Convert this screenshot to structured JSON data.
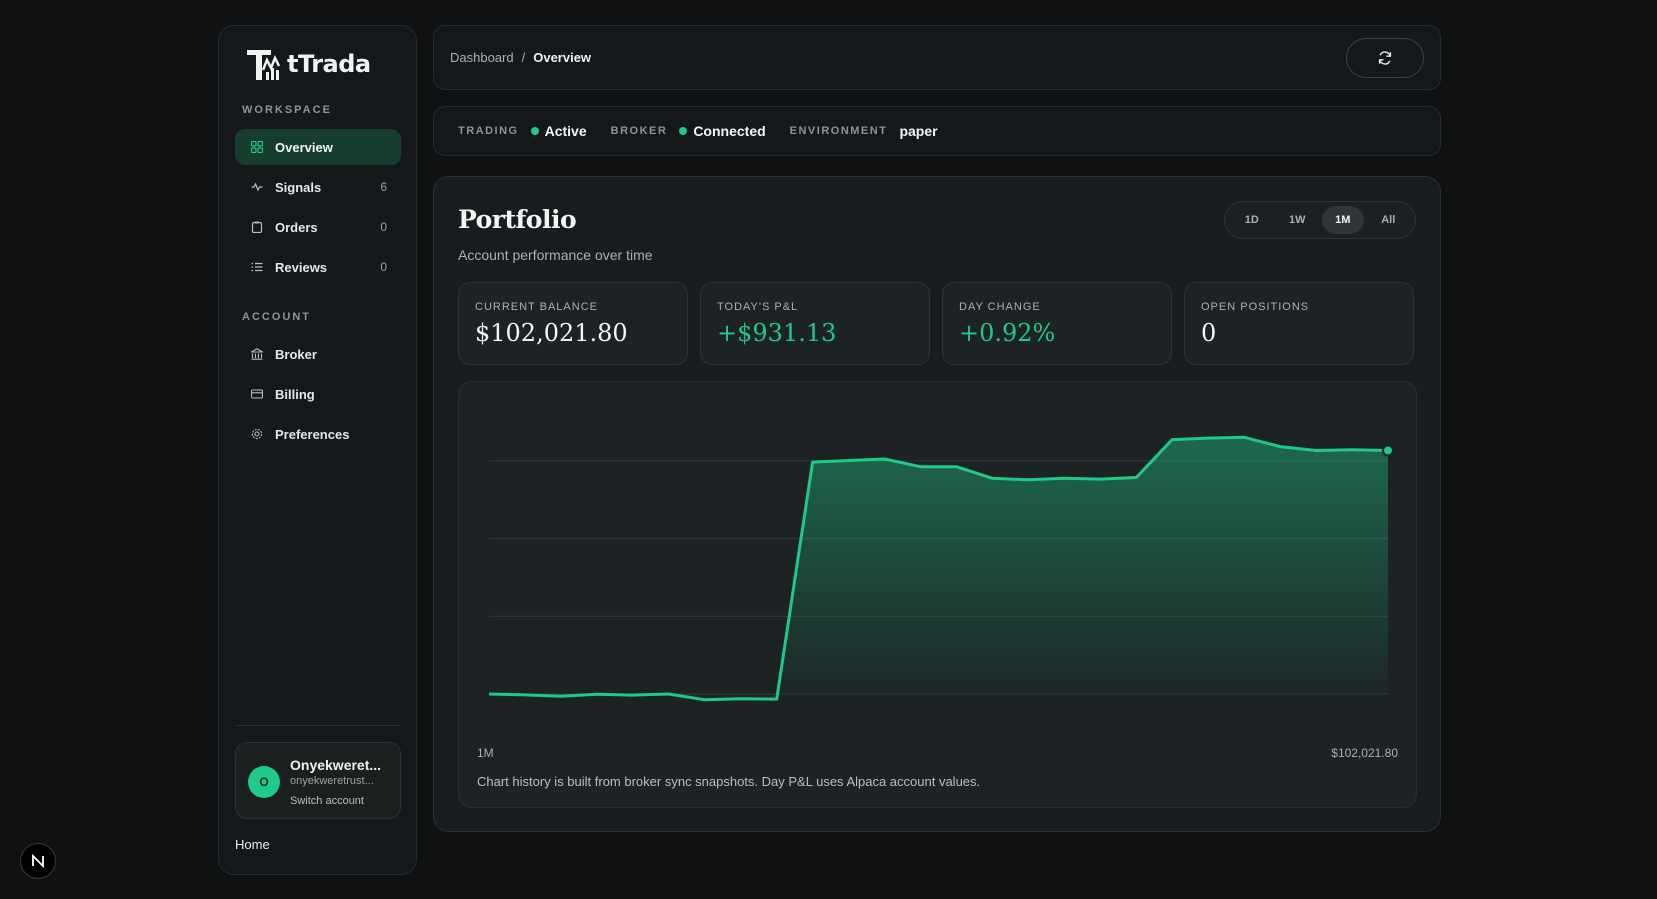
{
  "app": {
    "name": "tTrada"
  },
  "sidebar": {
    "workspace_label": "WORKSPACE",
    "account_label": "ACCOUNT",
    "workspace_items": [
      {
        "label": "Overview",
        "icon": "grid-icon",
        "count": "",
        "active": true
      },
      {
        "label": "Signals",
        "icon": "pulse-icon",
        "count": "6"
      },
      {
        "label": "Orders",
        "icon": "clipboard-icon",
        "count": "0"
      },
      {
        "label": "Reviews",
        "icon": "list-icon",
        "count": "0"
      }
    ],
    "account_items": [
      {
        "label": "Broker",
        "icon": "bank-icon"
      },
      {
        "label": "Billing",
        "icon": "card-icon"
      },
      {
        "label": "Preferences",
        "icon": "gear-icon"
      }
    ],
    "user": {
      "initial": "O",
      "name": "Onyekweret...",
      "email": "onyekweretrust...",
      "switch_label": "Switch account"
    },
    "home_label": "Home"
  },
  "header": {
    "breadcrumb_parent": "Dashboard",
    "breadcrumb_sep": "/",
    "breadcrumb_current": "Overview",
    "refresh_icon": "refresh-icon"
  },
  "status": {
    "trading_label": "TRADING",
    "trading_value": "Active",
    "broker_label": "BROKER",
    "broker_value": "Connected",
    "environment_label": "ENVIRONMENT",
    "environment_value": "paper",
    "ok_color": "#1ec98a"
  },
  "portfolio": {
    "title": "Portfolio",
    "subtitle": "Account performance over time",
    "ranges": [
      "1D",
      "1W",
      "1M",
      "All"
    ],
    "selected_range": "1M",
    "metrics": [
      {
        "label": "CURRENT BALANCE",
        "value": "$102,021.80",
        "positive": false
      },
      {
        "label": "TODAY'S P&L",
        "value": "+$931.13",
        "positive": true
      },
      {
        "label": "DAY CHANGE",
        "value": "+0.92%",
        "positive": true
      },
      {
        "label": "OPEN POSITIONS",
        "value": "0",
        "positive": false
      }
    ],
    "chart_range_label": "1M",
    "chart_end_value": "$102,021.80",
    "chart_note": "Chart history is built from broker sync snapshots. Day P&L uses Alpaca account values."
  },
  "chart_data": {
    "type": "area",
    "x": [
      0,
      1,
      2,
      3,
      4,
      5,
      6,
      7,
      8,
      9,
      10,
      11,
      12,
      13,
      14,
      15,
      16,
      17,
      18,
      19,
      20,
      21,
      22,
      23,
      24,
      25
    ],
    "series": [
      {
        "values": [
          0.0,
          -0.012,
          -0.028,
          -0.002,
          -0.014,
          0.0,
          -0.075,
          -0.062,
          -0.066,
          3.0,
          3.02,
          3.04,
          2.94,
          2.94,
          2.79,
          2.77,
          2.79,
          2.78,
          2.8,
          3.29,
          3.31,
          3.32,
          3.2,
          3.15,
          3.16,
          3.15
        ],
        "color": "#1ec98a"
      }
    ],
    "ylim": [
      0,
      3.35
    ],
    "grid": true,
    "accent_color": "#1ec98a"
  },
  "misc": {
    "next_badge_letter": "N"
  }
}
